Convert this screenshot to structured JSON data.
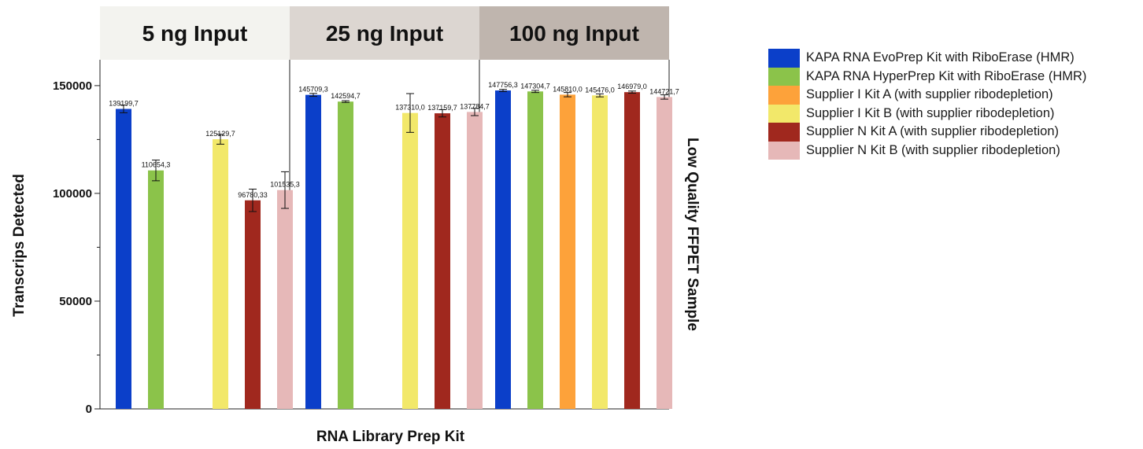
{
  "chart_data": {
    "type": "bar",
    "xlabel": "RNA Library Prep Kit",
    "ylabel": "Transcrips Detected",
    "right_label": "Low Quality FFPET Sample",
    "ylim": [
      0,
      162000
    ],
    "yticks": [
      0,
      50000,
      100000,
      150000
    ],
    "ytick_labels": [
      "0",
      "50000",
      "100000",
      "150000"
    ],
    "grid": false,
    "legend_position": "right",
    "series": [
      {
        "name": "KAPA RNA EvoPrep Kit with RiboErase (HMR)",
        "color": "#0b3fc9"
      },
      {
        "name": "KAPA RNA HyperPrep Kit with RiboErase (HMR)",
        "color": "#8bc34a"
      },
      {
        "name": "Supplier I Kit A (with supplier ribodepletion)",
        "color": "#fda23a"
      },
      {
        "name": "Supplier I Kit B (with supplier ribodepletion)",
        "color": "#f2e86a"
      },
      {
        "name": "Supplier N Kit A (with supplier ribodepletion)",
        "color": "#a0281e"
      },
      {
        "name": "Supplier N Kit B (with supplier ribodepletion)",
        "color": "#e6b8b8"
      }
    ],
    "panels": [
      {
        "title": "5 ng Input",
        "header_color": "#f3f3ef",
        "bars": [
          {
            "series": 0,
            "value": 139199.7,
            "error": 1800,
            "label": "139199,7"
          },
          {
            "series": 1,
            "value": 110654.3,
            "error": 4800,
            "label": "110654,3"
          },
          {
            "series": 2,
            "value": null,
            "error": null,
            "label": ""
          },
          {
            "series": 3,
            "value": 125129.7,
            "error": 2300,
            "label": "125129,7"
          },
          {
            "series": 4,
            "value": 96780.33,
            "error": 5200,
            "label": "96780,33"
          },
          {
            "series": 5,
            "value": 101535.3,
            "error": 8500,
            "label": "101535,3"
          }
        ]
      },
      {
        "title": "25 ng Input",
        "header_color": "#dcd6d1",
        "bars": [
          {
            "series": 0,
            "value": 145709.3,
            "error": 700,
            "label": "145709,3"
          },
          {
            "series": 1,
            "value": 142594.7,
            "error": 400,
            "label": "142594,7"
          },
          {
            "series": 2,
            "value": null,
            "error": null,
            "label": ""
          },
          {
            "series": 3,
            "value": 137310.0,
            "error": 9000,
            "label": "137310,0"
          },
          {
            "series": 4,
            "value": 137159.7,
            "error": 1700,
            "label": "137159,7"
          },
          {
            "series": 5,
            "value": 137784.7,
            "error": 1700,
            "label": "137784,7"
          }
        ]
      },
      {
        "title": "100 ng Input",
        "header_color": "#bfb5ae",
        "bars": [
          {
            "series": 0,
            "value": 147756.3,
            "error": 500,
            "label": "147756,3"
          },
          {
            "series": 1,
            "value": 147304.7,
            "error": 500,
            "label": "147304,7"
          },
          {
            "series": 2,
            "value": 145810.0,
            "error": 1000,
            "label": "145810,0"
          },
          {
            "series": 3,
            "value": 145476.0,
            "error": 700,
            "label": "145476,0"
          },
          {
            "series": 4,
            "value": 146979.0,
            "error": 500,
            "label": "146979,0"
          },
          {
            "series": 5,
            "value": 144721.7,
            "error": 1000,
            "label": "144721,7"
          }
        ]
      }
    ]
  }
}
